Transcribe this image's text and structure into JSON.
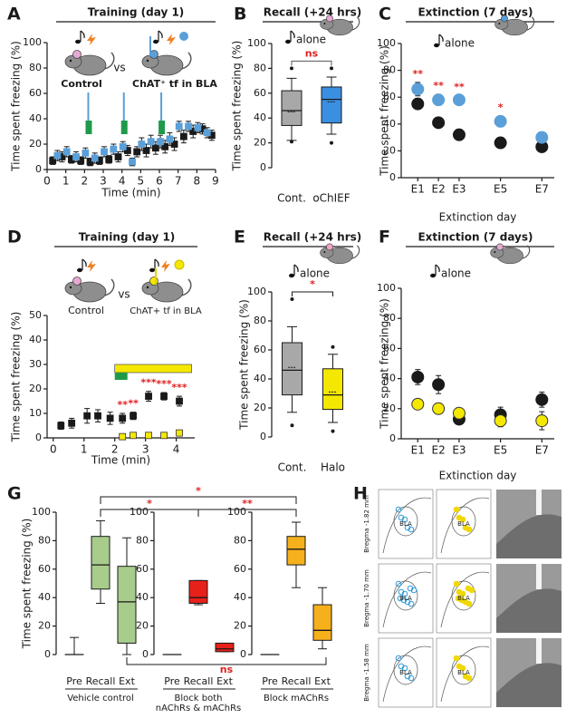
{
  "chart_data": [
    {
      "panel": "A",
      "type": "scatter",
      "title": "Training (day 1)",
      "vs_label": "vs",
      "xlabel": "Time (min)",
      "ylabel": "Time spent freezing (%)",
      "xlim": [
        0,
        9
      ],
      "xticks": [
        0,
        1,
        2,
        3,
        4,
        5,
        6,
        7,
        8,
        9
      ],
      "ylim": [
        0,
        100
      ],
      "yticks": [
        0,
        20,
        40,
        60,
        80,
        100
      ],
      "series": [
        {
          "name": "Control",
          "color": "#1a1a1a",
          "marker": "square",
          "x": [
            0.3,
            0.8,
            1.3,
            1.8,
            2.3,
            2.8,
            3.3,
            3.8,
            4.3,
            4.8,
            5.3,
            5.8,
            6.3,
            6.8,
            7.3,
            7.8,
            8.3,
            8.8
          ],
          "values": [
            7,
            10,
            8,
            7,
            6,
            7,
            8,
            10,
            15,
            14,
            15,
            17,
            18,
            20,
            26,
            30,
            32,
            27
          ],
          "errors": [
            3,
            4,
            3,
            3,
            3,
            3,
            3,
            4,
            4,
            4,
            5,
            5,
            5,
            5,
            5,
            5,
            4,
            4
          ]
        },
        {
          "name": "ChAT⁺ tf in BLA",
          "color": "#5a9fd8",
          "marker": "square",
          "x": [
            0.55,
            1.05,
            1.55,
            2.05,
            2.55,
            3.05,
            3.55,
            4.05,
            4.55,
            5.05,
            5.55,
            6.05,
            6.55,
            7.05,
            7.55,
            8.05,
            8.55
          ],
          "values": [
            11,
            14,
            10,
            13,
            9,
            14,
            16,
            18,
            6,
            20,
            22,
            22,
            24,
            34,
            34,
            33,
            29
          ],
          "errors": [
            4,
            4,
            4,
            4,
            4,
            4,
            4,
            4,
            3,
            5,
            5,
            5,
            5,
            4,
            4,
            4,
            4
          ]
        }
      ]
    },
    {
      "panel": "B",
      "type": "box",
      "title": "Recall (+24 hrs)",
      "cue": "alone",
      "ylabel": "Time spent freezing (%)",
      "comparison": "ns",
      "ylim": [
        0,
        100
      ],
      "yticks": [
        0,
        20,
        40,
        60,
        80,
        100
      ],
      "categories": [
        "Cont.",
        "oChIEF"
      ],
      "colors": [
        "#a8a8a8",
        "#3b8fe0"
      ],
      "boxes": [
        {
          "min": 22,
          "q1": 34,
          "median": 46,
          "mean": 45,
          "q3": 62,
          "max": 72,
          "outliers": [
            80,
            21
          ]
        },
        {
          "min": 27,
          "q1": 36,
          "median": 55,
          "mean": 53,
          "q3": 65,
          "max": 73,
          "outliers": [
            80,
            20
          ]
        }
      ]
    },
    {
      "panel": "C",
      "type": "scatter",
      "title": "Extinction (7 days)",
      "cue": "alone",
      "xlabel": "Extinction day",
      "ylabel": "Time spent freezing (%)",
      "xlim": [
        0.2,
        7.6
      ],
      "xticks": [
        {
          "value": 1,
          "label": "E1"
        },
        {
          "value": 2,
          "label": "E2"
        },
        {
          "value": 3,
          "label": "E3"
        },
        {
          "value": 5,
          "label": "E5"
        },
        {
          "value": 7,
          "label": "E7"
        }
      ],
      "ylim": [
        0,
        100
      ],
      "yticks": [
        0,
        20,
        40,
        60,
        80,
        100
      ],
      "series": [
        {
          "color": "#1a1a1a",
          "marker": "circle",
          "x": [
            1,
            2,
            3,
            5,
            7
          ],
          "values": [
            55,
            41,
            32,
            26,
            23
          ],
          "errors": [
            4,
            3,
            4,
            4,
            4
          ]
        },
        {
          "color": "#5a9fd8",
          "marker": "circle",
          "x": [
            1,
            2,
            3,
            5,
            7
          ],
          "values": [
            66,
            58,
            58,
            42,
            30
          ],
          "errors": [
            5,
            4,
            3,
            4,
            4
          ]
        }
      ],
      "significance": [
        {
          "x": 1,
          "label": "**"
        },
        {
          "x": 2,
          "label": "**"
        },
        {
          "x": 3,
          "label": "**"
        },
        {
          "x": 5,
          "label": "*"
        }
      ]
    },
    {
      "panel": "D",
      "type": "scatter",
      "title": "Training (day 1)",
      "vs_label": "vs",
      "xlabel": "Time (min)",
      "ylabel": "Time spent freezing (%)",
      "xlim": [
        -0.2,
        4.6
      ],
      "xticks": [
        0,
        1,
        2,
        3,
        4
      ],
      "ylim": [
        0,
        50
      ],
      "yticks": [
        0,
        10,
        20,
        30,
        40,
        50
      ],
      "series": [
        {
          "name": "Control",
          "color": "#1a1a1a",
          "marker": "square",
          "x": [
            0.25,
            0.6,
            1.1,
            1.45,
            1.85,
            2.25,
            2.6,
            3.1,
            3.6,
            4.1
          ],
          "values": [
            5,
            6,
            9,
            9,
            8,
            8,
            9,
            17,
            17,
            15
          ],
          "errors": [
            1.5,
            2,
            3,
            2.5,
            2.5,
            2,
            1.5,
            2,
            1.5,
            2
          ]
        },
        {
          "name": "ChAT+ tf in BLA",
          "color": "#f5e800",
          "marker": "square",
          "x": [
            2.25,
            2.6,
            3.1,
            3.6,
            4.1
          ],
          "values": [
            0.5,
            1,
            1,
            1,
            2
          ],
          "errors": [
            0.5,
            0.5,
            0.5,
            0.5,
            0.8
          ]
        }
      ],
      "significance": [
        {
          "x": 2.25,
          "label": "**"
        },
        {
          "x": 2.6,
          "label": "**"
        },
        {
          "x": 3.1,
          "label": "***"
        },
        {
          "x": 3.6,
          "label": "***"
        },
        {
          "x": 4.1,
          "label": "***"
        }
      ]
    },
    {
      "panel": "E",
      "type": "box",
      "title": "Recall (+24 hrs)",
      "cue": "alone",
      "ylabel": "Time spent freezing (%)",
      "comparison": "*",
      "ylim": [
        0,
        100
      ],
      "yticks": [
        0,
        20,
        40,
        60,
        80,
        100
      ],
      "categories": [
        "Cont.",
        "Halo"
      ],
      "colors": [
        "#a8a8a8",
        "#f5e800"
      ],
      "boxes": [
        {
          "min": 17,
          "q1": 29,
          "median": 46,
          "mean": 48,
          "q3": 65,
          "max": 76,
          "outliers": [
            95,
            8
          ]
        },
        {
          "min": 10,
          "q1": 19,
          "median": 29,
          "mean": 31,
          "q3": 47,
          "max": 57,
          "outliers": [
            62,
            4
          ]
        }
      ]
    },
    {
      "panel": "F",
      "type": "scatter",
      "title": "Extinction (7 days)",
      "cue": "alone",
      "xlabel": "Extinction day",
      "ylabel": "Time spent freezing (%)",
      "xlim": [
        0.2,
        7.6
      ],
      "xticks": [
        {
          "value": 1,
          "label": "E1"
        },
        {
          "value": 2,
          "label": "E2"
        },
        {
          "value": 3,
          "label": "E3"
        },
        {
          "value": 5,
          "label": "E5"
        },
        {
          "value": 7,
          "label": "E7"
        }
      ],
      "ylim": [
        0,
        100
      ],
      "yticks": [
        0,
        20,
        40,
        60,
        80,
        100
      ],
      "series": [
        {
          "color": "#1a1a1a",
          "marker": "circle",
          "x": [
            1,
            2,
            3,
            5,
            7
          ],
          "values": [
            41,
            36,
            13,
            16,
            26
          ],
          "errors": [
            5,
            6,
            3,
            5,
            5
          ]
        },
        {
          "color": "#f5e800",
          "marker": "circle",
          "x": [
            1,
            2,
            3,
            5,
            7
          ],
          "values": [
            23,
            20,
            17,
            12,
            12
          ],
          "errors": [
            3,
            3,
            3,
            4,
            6
          ]
        }
      ]
    },
    {
      "panel": "G",
      "type": "box",
      "ylabel": "Time spent freezing (%)",
      "ylim": [
        0,
        100
      ],
      "yticks": [
        0,
        20,
        40,
        60,
        80,
        100
      ],
      "comparisons": [
        "*",
        "*",
        "**",
        "ns"
      ],
      "groups": [
        {
          "name": "Vehicle control",
          "color": "#a8cc8c",
          "label_color": "#7aa85a",
          "categories": [
            "Pre",
            "Recall",
            "Ext"
          ],
          "boxes": [
            {
              "min": 0,
              "q1": 0,
              "median": 0,
              "q3": 0,
              "max": 12
            },
            {
              "min": 36,
              "q1": 46,
              "median": 63,
              "q3": 83,
              "max": 94
            },
            {
              "min": 0,
              "q1": 8,
              "median": 37,
              "q3": 62,
              "max": 82
            }
          ]
        },
        {
          "name": [
            "Block both",
            "nAChRs & mAChRs"
          ],
          "color": "#e8201a",
          "label_color": "#e02020",
          "categories": [
            "Pre",
            "Recall",
            "Ext"
          ],
          "boxes": [
            {
              "min": 0,
              "q1": 0,
              "median": 0,
              "q3": 0,
              "max": 0
            },
            {
              "min": 35,
              "q1": 36,
              "median": 40,
              "q3": 52,
              "max": 52
            },
            {
              "min": 2,
              "q1": 2,
              "median": 4,
              "q3": 8,
              "max": 8
            }
          ]
        },
        {
          "name": "Block mAChRs",
          "color": "#f6b01c",
          "label_color": "#f08c00",
          "categories": [
            "Pre",
            "Recall",
            "Ext"
          ],
          "boxes": [
            {
              "min": 0,
              "q1": 0,
              "median": 0,
              "q3": 0,
              "max": 0
            },
            {
              "min": 47,
              "q1": 63,
              "median": 74,
              "q3": 83,
              "max": 93
            },
            {
              "min": 4,
              "q1": 10,
              "median": 17,
              "q3": 35,
              "max": 47
            }
          ]
        }
      ]
    }
  ],
  "histology": {
    "panel": "H",
    "rows": [
      {
        "bregma": "Bregma -1.82 mm",
        "labels": [
          "BLA",
          "BLA"
        ]
      },
      {
        "bregma": "Bregma -1.70 mm",
        "labels": [
          "BLA",
          "BLA"
        ]
      },
      {
        "bregma": "Bregma -1.58 mm",
        "labels": [
          "BLA",
          "BLA"
        ]
      }
    ]
  }
}
